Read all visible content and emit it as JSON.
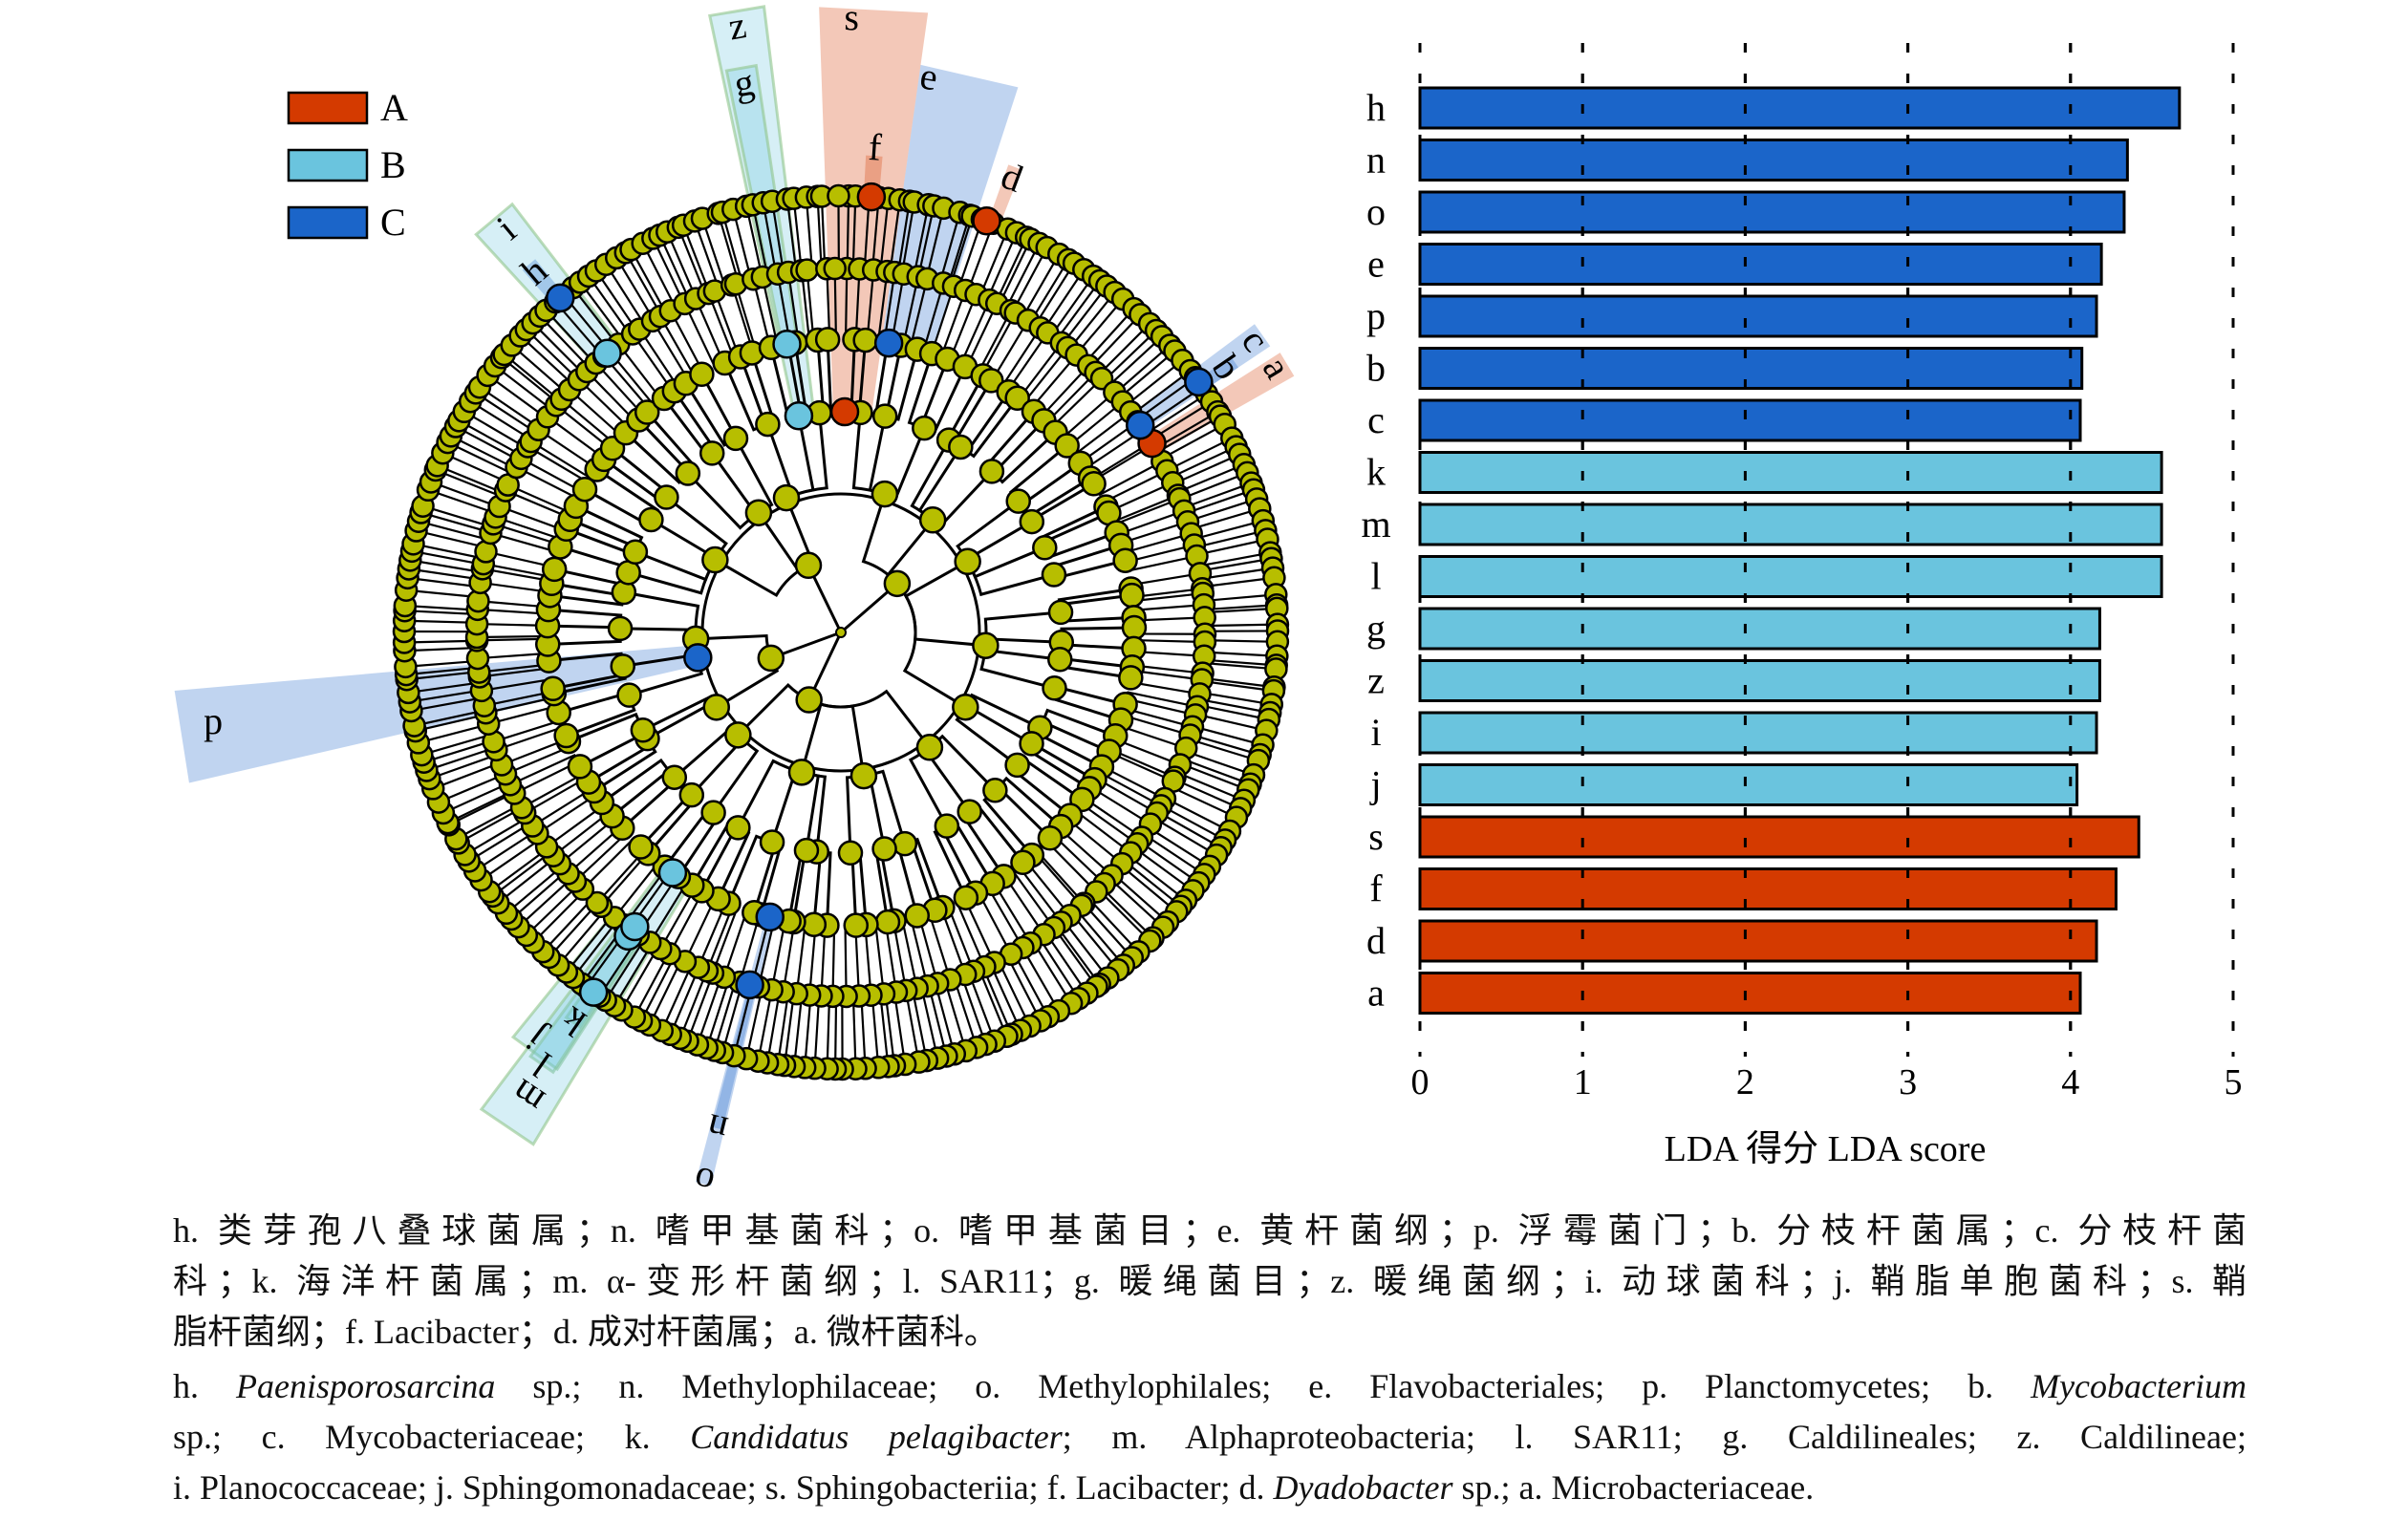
{
  "colors": {
    "A": "#d43a00",
    "B": "#6ac4de",
    "C": "#1b65c9",
    "node": "#b7be00"
  },
  "legend": [
    {
      "group": "A",
      "label": "A"
    },
    {
      "group": "B",
      "label": "B"
    },
    {
      "group": "C",
      "label": "C"
    }
  ],
  "chart_data": [
    {
      "type": "cladogram",
      "center_label": "",
      "biomarkers": [
        {
          "id": "s",
          "group": "A"
        },
        {
          "id": "f",
          "group": "A"
        },
        {
          "id": "d",
          "group": "A"
        },
        {
          "id": "a",
          "group": "A"
        },
        {
          "id": "z",
          "group": "B"
        },
        {
          "id": "g",
          "group": "B"
        },
        {
          "id": "i",
          "group": "B"
        },
        {
          "id": "j",
          "group": "B"
        },
        {
          "id": "k",
          "group": "B"
        },
        {
          "id": "l",
          "group": "B"
        },
        {
          "id": "m",
          "group": "B"
        },
        {
          "id": "e",
          "group": "C"
        },
        {
          "id": "h",
          "group": "C"
        },
        {
          "id": "b",
          "group": "C"
        },
        {
          "id": "c",
          "group": "C"
        },
        {
          "id": "p",
          "group": "C"
        },
        {
          "id": "n",
          "group": "C"
        },
        {
          "id": "o",
          "group": "C"
        }
      ]
    },
    {
      "type": "bar",
      "orientation": "horizontal",
      "categories": [
        "h",
        "n",
        "o",
        "e",
        "p",
        "b",
        "c",
        "k",
        "m",
        "l",
        "g",
        "z",
        "i",
        "j",
        "s",
        "f",
        "d",
        "a"
      ],
      "groups": [
        "C",
        "C",
        "C",
        "C",
        "C",
        "C",
        "C",
        "B",
        "B",
        "B",
        "B",
        "B",
        "B",
        "B",
        "A",
        "A",
        "A",
        "A"
      ],
      "values": [
        4.67,
        4.35,
        4.33,
        4.19,
        4.16,
        4.07,
        4.06,
        4.56,
        4.56,
        4.56,
        4.18,
        4.18,
        4.16,
        4.04,
        4.42,
        4.28,
        4.16,
        4.06
      ],
      "xlabel": "LDA 得分 LDA score",
      "xlim": [
        0,
        5
      ],
      "xticks": [
        "0",
        "1",
        "2",
        "3",
        "4",
        "5"
      ],
      "grid": "vertical dashed"
    }
  ],
  "caption": {
    "zh": [
      [
        {
          "t": "h. 类芽孢八叠球菌属；n. 嗜甲基菌科；o. 嗜甲基菌目；e. 黄杆菌纲；p. 浮霉菌门；b. 分枝杆菌属；c. 分枝杆菌"
        }
      ],
      [
        {
          "t": "科；k. 海洋杆菌属；m. α-变形杆菌纲；l. SAR11；g. 暖绳菌目；z. 暖绳菌纲；i. 动球菌科；j. 鞘脂单胞菌科；s. 鞘"
        }
      ],
      [
        {
          "t": "脂杆菌纲；f. Lacibacter；d. 成对杆菌属；a. 微杆菌科。"
        }
      ]
    ],
    "en": [
      [
        {
          "t": "h. "
        },
        {
          "t": "Paenisporosarcina",
          "i": true
        },
        {
          "t": " sp.; n. Methylophilaceae; o. Methylophilales; e. Flavobacteriales; p. Planctomycetes; b. "
        },
        {
          "t": "Mycobacterium",
          "i": true
        }
      ],
      [
        {
          "t": "sp.; c. Mycobacteriaceae; k. "
        },
        {
          "t": "Candidatus pelagibacter",
          "i": true
        },
        {
          "t": "; m. Alphaproteobacteria; l. SAR11; g. Caldilineales; z. Caldilineae;"
        }
      ],
      [
        {
          "t": "i. Planococcaceae; j. Sphingomonadaceae; s. Sphingobacteriia; f. Lacibacter; d. "
        },
        {
          "t": "Dyadobacter",
          "i": true
        },
        {
          "t": " sp.; a. Microbacteriaceae."
        }
      ]
    ]
  }
}
